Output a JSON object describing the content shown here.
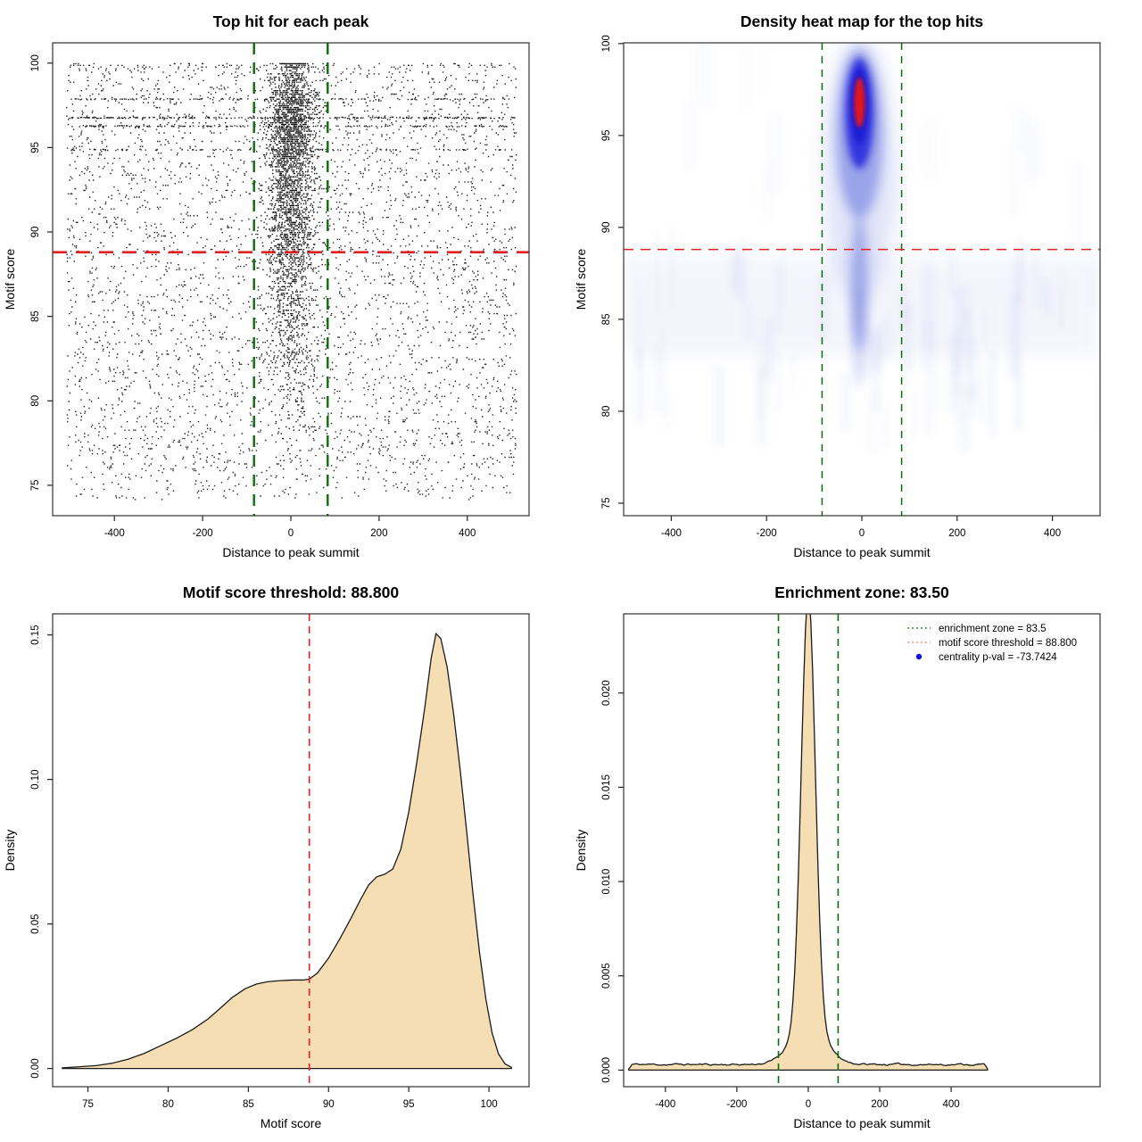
{
  "page": {
    "background": "#ffffff"
  },
  "colors": {
    "threshold_red": "#e32020",
    "zone_green": "#0b6e0b",
    "density_fill": "#f5deb3",
    "density_stroke": "#1a1a1a",
    "point_black": "#000000",
    "heat_halo": "#c6cdf2",
    "heat_mid_blue": "#6b79e0",
    "heat_blue": "#2a2ade",
    "heat_deep_blue": "#1b1bd6",
    "heat_red": "#e51717",
    "stripe_blue": "#b8c2ec",
    "box_stroke": "#333333"
  },
  "chart_data": [
    {
      "type": "scatter",
      "title": "Top hit for each peak",
      "xlabel": "Distance to peak summit",
      "ylabel": "Motif score",
      "xlim": [
        -540,
        540
      ],
      "ylim": [
        73.2,
        101.2
      ],
      "xticks": [
        -400,
        -200,
        0,
        200,
        400
      ],
      "xtick_labels": [
        "-400",
        "-200",
        "0",
        "200",
        "400"
      ],
      "yticks": [
        75,
        80,
        85,
        90,
        95,
        100
      ],
      "ytick_labels": [
        "75",
        "80",
        "85",
        "90",
        "95",
        "100"
      ],
      "grid": false,
      "threshold_line_y": 88.8,
      "zone_lines_x": [
        -83.5,
        83.5
      ],
      "points": {
        "seed": 42,
        "background_count": 4200,
        "cluster_count": 3100,
        "cluster_sd_x": 26,
        "top_band_y": 100,
        "top_band_count": 90,
        "sub_band_y": 99.8,
        "sub_band_count": 45,
        "score_bands": [
          [
            96.8,
            260
          ],
          [
            96.3,
            170
          ],
          [
            97.9,
            120
          ],
          [
            94.9,
            110
          ]
        ],
        "x_range": [
          -510,
          510
        ],
        "y_range": [
          74.2,
          100
        ]
      }
    },
    {
      "type": "heatmap",
      "title": "Density heat map for the top hits",
      "xlabel": "Distance to peak summit",
      "ylabel": "Motif score",
      "xlim": [
        -500,
        500
      ],
      "ylim": [
        74.32,
        100.04
      ],
      "xticks": [
        -400,
        -200,
        0,
        200,
        400
      ],
      "xtick_labels": [
        "-400",
        "-200",
        "0",
        "200",
        "400"
      ],
      "yticks": [
        75,
        80,
        85,
        90,
        95,
        100
      ],
      "ytick_labels": [
        "75",
        "80",
        "85",
        "90",
        "95",
        "100"
      ],
      "grid": false,
      "threshold_line_y": 88.8,
      "zone_lines_x": [
        -83.5,
        83.5
      ],
      "hotspot": {
        "x": -5,
        "core_y": 96.8,
        "core_span_y": [
          95.3,
          98.2
        ],
        "blue_span_y": [
          91,
          99.6
        ],
        "tail_span_y": [
          83,
          91
        ],
        "stripe_band_y": [
          83,
          88.5
        ],
        "stripe_seed": 9,
        "stripe_count": 60,
        "upper_stripe_count": 18
      }
    },
    {
      "type": "area",
      "title": "Motif score threshold: 88.800",
      "xlabel": "Motif score",
      "ylabel": "Density",
      "xlim": [
        72.8,
        102.5
      ],
      "ylim": [
        -0.0063,
        0.1573
      ],
      "xticks": [
        75,
        80,
        85,
        90,
        95,
        100
      ],
      "xtick_labels": [
        "75",
        "80",
        "85",
        "90",
        "95",
        "100"
      ],
      "yticks": [
        0.0,
        0.05,
        0.1,
        0.15
      ],
      "ytick_labels": [
        "0.00",
        "0.05",
        "0.10",
        "0.15"
      ],
      "grid": false,
      "threshold_line_x": 88.8,
      "curve": [
        [
          73.4,
          0.0002
        ],
        [
          74.5,
          0.0006
        ],
        [
          75.5,
          0.001
        ],
        [
          76.5,
          0.0018
        ],
        [
          77.5,
          0.0032
        ],
        [
          78.5,
          0.0052
        ],
        [
          79.5,
          0.0078
        ],
        [
          80.5,
          0.0104
        ],
        [
          81.5,
          0.0134
        ],
        [
          82.5,
          0.0172
        ],
        [
          83.2,
          0.0206
        ],
        [
          84,
          0.0246
        ],
        [
          84.8,
          0.0276
        ],
        [
          85.5,
          0.0292
        ],
        [
          86.2,
          0.03
        ],
        [
          87,
          0.0304
        ],
        [
          87.8,
          0.0306
        ],
        [
          88.4,
          0.0306
        ],
        [
          88.8,
          0.0309
        ],
        [
          89.3,
          0.033
        ],
        [
          90,
          0.0382
        ],
        [
          90.7,
          0.0448
        ],
        [
          91.4,
          0.052
        ],
        [
          92,
          0.0585
        ],
        [
          92.5,
          0.0635
        ],
        [
          93,
          0.0663
        ],
        [
          93.5,
          0.0672
        ],
        [
          94,
          0.069
        ],
        [
          94.5,
          0.0758
        ],
        [
          95,
          0.0888
        ],
        [
          95.5,
          0.1058
        ],
        [
          96,
          0.1248
        ],
        [
          96.4,
          0.142
        ],
        [
          96.7,
          0.1505
        ],
        [
          97,
          0.1487
        ],
        [
          97.4,
          0.1387
        ],
        [
          97.8,
          0.1225
        ],
        [
          98.2,
          0.1035
        ],
        [
          98.6,
          0.0825
        ],
        [
          99,
          0.0605
        ],
        [
          99.4,
          0.0405
        ],
        [
          99.8,
          0.0242
        ],
        [
          100.2,
          0.0122
        ],
        [
          100.6,
          0.005
        ],
        [
          101,
          0.0016
        ],
        [
          101.4,
          0.0004
        ]
      ]
    },
    {
      "type": "area",
      "title": "Enrichment zone: 83.50",
      "xlabel": "Distance to peak summit",
      "ylabel": "Density",
      "xlim": [
        -517,
        817
      ],
      "ylim": [
        -0.00088,
        0.0242
      ],
      "xticks": [
        -400,
        -200,
        0,
        200,
        400
      ],
      "xtick_labels": [
        "-400",
        "-200",
        "0",
        "200",
        "400"
      ],
      "yticks": [
        0.0,
        0.005,
        0.01,
        0.015,
        0.02
      ],
      "ytick_labels": [
        "0.000",
        "0.005",
        "0.010",
        "0.015",
        "0.020"
      ],
      "grid": false,
      "zone_lines_x": [
        -83.5,
        83.5
      ],
      "peak": {
        "center": 0,
        "height": 0.0229,
        "sigma": 19.5,
        "shoulder_height": 0.002,
        "shoulder_sigma": 48,
        "baseline": 0.0003,
        "noise_amp": 0.00013,
        "x_range": [
          -503,
          503
        ],
        "step": 5,
        "seed": 11
      },
      "legend": [
        {
          "glyph": "dotted-line",
          "color": "#2e8b2e",
          "label": "enrichment zone = 83.5"
        },
        {
          "glyph": "dotted-line",
          "color": "#f08a8a",
          "label": "motif score threshold = 88.800"
        },
        {
          "glyph": "dot",
          "color": "#1414e0",
          "label": "centrality p-val = -73.7424"
        }
      ]
    }
  ]
}
